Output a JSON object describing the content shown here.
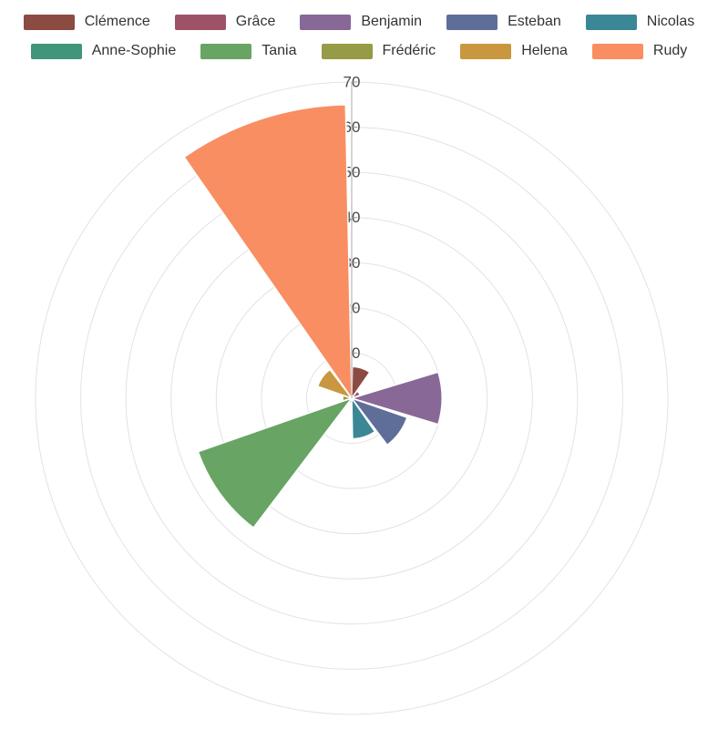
{
  "legend": {
    "items_per_row": 5,
    "items": [
      {
        "label": "Clémence",
        "color": "#8b4a42"
      },
      {
        "label": "Grâce",
        "color": "#9e5265"
      },
      {
        "label": "Benjamin",
        "color": "#876896"
      },
      {
        "label": "Esteban",
        "color": "#5f6e99"
      },
      {
        "label": "Nicolas",
        "color": "#3b8795"
      },
      {
        "label": "Anne-Sophie",
        "color": "#41957b"
      },
      {
        "label": "Tania",
        "color": "#68a463"
      },
      {
        "label": "Frédéric",
        "color": "#969b45"
      },
      {
        "label": "Helena",
        "color": "#c9973f"
      },
      {
        "label": "Rudy",
        "color": "#f98e62"
      }
    ]
  },
  "chart_data": {
    "type": "bar",
    "subtype": "polar-rose",
    "title": "",
    "categories": [
      "Clémence",
      "Grâce",
      "Benjamin",
      "Esteban",
      "Nicolas",
      "Anne-Sophie",
      "Tania",
      "Frédéric",
      "Helena",
      "Rudy"
    ],
    "values": [
      7,
      2,
      20,
      13,
      9,
      1,
      36,
      2,
      8,
      65
    ],
    "colors": [
      "#8b4a42",
      "#9e5265",
      "#876896",
      "#5f6e99",
      "#3b8795",
      "#41957b",
      "#68a463",
      "#969b45",
      "#c9973f",
      "#f98e62"
    ],
    "radial_axis": {
      "min": 0,
      "max": 70,
      "interval": 10,
      "tick_labels": [
        "10",
        "20",
        "30",
        "40",
        "50",
        "60",
        "70"
      ]
    },
    "angle": {
      "start_deg": 0,
      "sector_deg": 36,
      "pad_deg": 1.2,
      "direction": "clockwise"
    },
    "grid": true,
    "legend_position": "top",
    "style": {
      "grid_color": "#e2e2e8",
      "axis_line_color": "#aaaaaa",
      "axis_tick_color": "#999999",
      "axis_label_color": "#4a4a4a",
      "sector_border_color": "#ffffff"
    }
  }
}
